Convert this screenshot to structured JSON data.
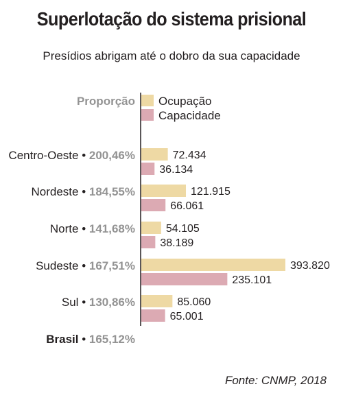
{
  "title": "Superlotação do sistema prisional",
  "subtitle": "Presídios abrigam até o dobro da sua capacidade",
  "source": "Fonte: CNMP, 2018",
  "colors": {
    "ocupacao": "#eed9a4",
    "capacidade": "#dcaab3",
    "axis": "#231f20",
    "pct": "#939393"
  },
  "chart_data": {
    "type": "bar",
    "orientation": "horizontal",
    "legend_title": "Proporção",
    "series": [
      {
        "name": "Ocupação",
        "values": [
          72434,
          121915,
          54105,
          393820,
          85060
        ]
      },
      {
        "name": "Capacidade",
        "values": [
          36134,
          66061,
          38189,
          235101,
          65001
        ]
      }
    ],
    "value_labels": {
      "Ocupação": [
        "72.434",
        "121.915",
        "54.105",
        "393.820",
        "85.060"
      ],
      "Capacidade": [
        "36.134",
        "66.061",
        "38.189",
        "235.101",
        "65.001"
      ]
    },
    "categories": [
      "Centro-Oeste",
      "Nordeste",
      "Norte",
      "Sudeste",
      "Sul"
    ],
    "proportions": [
      "200,46%",
      "184,55%",
      "141,68%",
      "167,51%",
      "130,86%"
    ],
    "total": {
      "name": "Brasil",
      "proportion": "165,12%"
    }
  }
}
